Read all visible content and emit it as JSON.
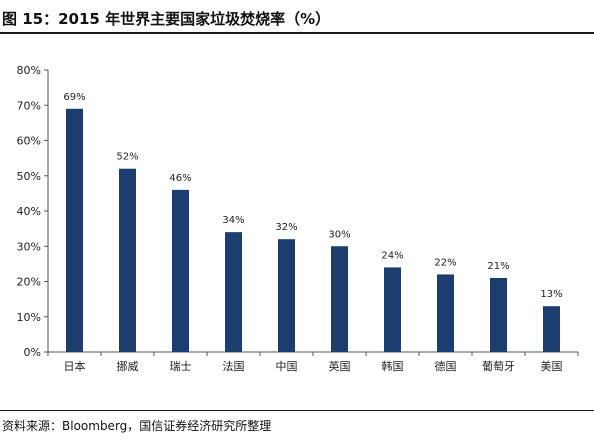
{
  "header": {
    "title": "图 15：2015 年世界主要国家垃圾焚烧率（%）"
  },
  "footer": {
    "source": "资料来源：Bloomberg，国信证券经济研究所整理"
  },
  "chart_data": {
    "type": "bar",
    "title": "2015 年世界主要国家垃圾焚烧率（%）",
    "categories": [
      "日本",
      "挪威",
      "瑞士",
      "法国",
      "中国",
      "英国",
      "韩国",
      "德国",
      "葡萄牙",
      "美国"
    ],
    "values": [
      69,
      52,
      46,
      34,
      32,
      30,
      24,
      22,
      21,
      13
    ],
    "data_labels": [
      "69%",
      "52%",
      "46%",
      "34%",
      "32%",
      "30%",
      "24%",
      "22%",
      "21%",
      "13%"
    ],
    "ylim": [
      0,
      80
    ],
    "yticks": [
      0,
      10,
      20,
      30,
      40,
      50,
      60,
      70,
      80
    ],
    "ytick_labels": [
      "0%",
      "10%",
      "20%",
      "30%",
      "40%",
      "50%",
      "60%",
      "70%",
      "80%"
    ],
    "xlabel": "",
    "ylabel": "",
    "grid": false,
    "legend": "none",
    "bar_color": "#1b3e6f"
  }
}
